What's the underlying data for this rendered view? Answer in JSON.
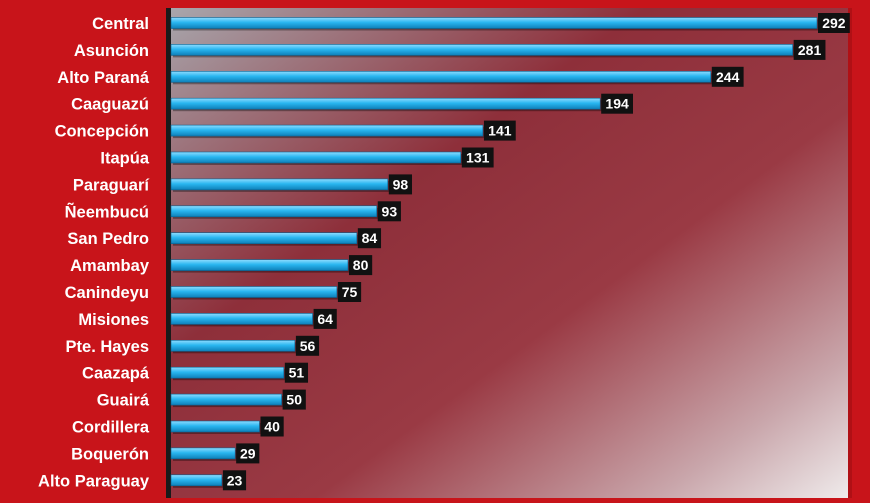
{
  "chart_data": {
    "type": "bar",
    "orientation": "horizontal",
    "title": "",
    "xlabel": "",
    "ylabel": "",
    "categories": [
      "Central",
      "Asunción",
      "Alto Paraná",
      "Caaguazú",
      "Concepción",
      "Itapúa",
      "Paraguarí",
      "Ñeembucú",
      "San Pedro",
      "Amambay",
      "Canindeyu",
      "Misiones",
      "Pte. Hayes",
      "Caazapá",
      "Guairá",
      "Cordillera",
      "Boquerón",
      "Alto Paraguay"
    ],
    "values": [
      292,
      281,
      244,
      194,
      141,
      131,
      98,
      93,
      84,
      80,
      75,
      64,
      56,
      51,
      50,
      40,
      29,
      23
    ],
    "xlim": [
      0,
      292
    ],
    "grid": false,
    "legend": "none",
    "colors": {
      "background": "#c8141a",
      "bar": "#29b6f0",
      "bar_highlight": "#8fdcff",
      "bar_shadow": "#0e7fb8",
      "label_box": "#111111",
      "label_text": "#ffffff",
      "axis": "#1a1a1a"
    }
  }
}
